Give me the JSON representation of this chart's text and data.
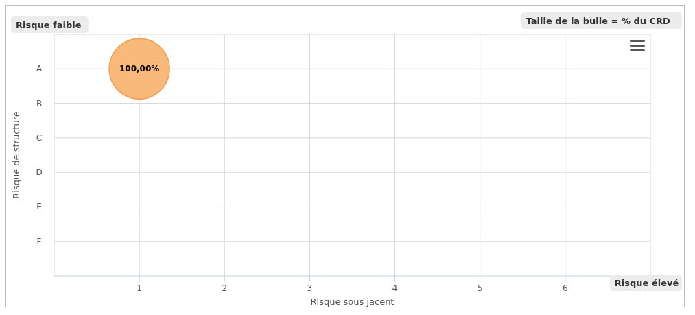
{
  "chart_data": {
    "type": "bubble",
    "orientation": "horizontal",
    "xlabel": "Risque sous jacent",
    "ylabel": "Risque de structure",
    "categories": [
      "A",
      "B",
      "C",
      "D",
      "E",
      "F"
    ],
    "values": [
      1,
      null,
      null,
      null,
      null,
      null
    ],
    "sizes": [
      1,
      null,
      null,
      null,
      null,
      null
    ],
    "color": "#f9b97a",
    "value_labels": [
      "100,00%",
      null,
      null,
      null,
      null,
      null
    ],
    "xlim": [
      0,
      7
    ],
    "xticks": [
      1,
      2,
      3,
      4,
      5,
      6
    ],
    "grid": true,
    "annotations": [
      "Risque faible",
      "Taille de la bulle = % du CRD",
      "Risque élevé"
    ]
  }
}
